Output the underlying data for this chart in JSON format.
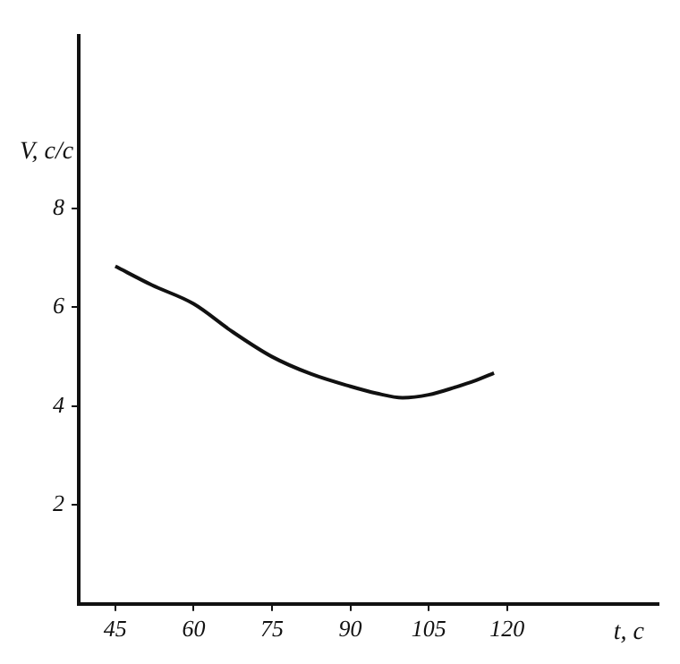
{
  "chart_data": {
    "type": "line",
    "xlabel": "t, с",
    "ylabel": "V, с/с",
    "x": [
      45,
      52,
      60,
      67.5,
      75,
      82.5,
      90,
      95,
      100,
      105,
      110,
      114,
      117.5
    ],
    "values": [
      6.83,
      6.45,
      6.07,
      5.5,
      5.0,
      4.65,
      4.4,
      4.26,
      4.17,
      4.23,
      4.38,
      4.52,
      4.67
    ],
    "color": "#111111",
    "xlim": [
      38,
      149
    ],
    "ylim": [
      0,
      11.5
    ],
    "xticks": [
      45,
      60,
      75,
      90,
      105,
      120
    ],
    "yticks": [
      2,
      4,
      6,
      8
    ],
    "grid": false,
    "marker": "none",
    "line_style": "solid"
  }
}
